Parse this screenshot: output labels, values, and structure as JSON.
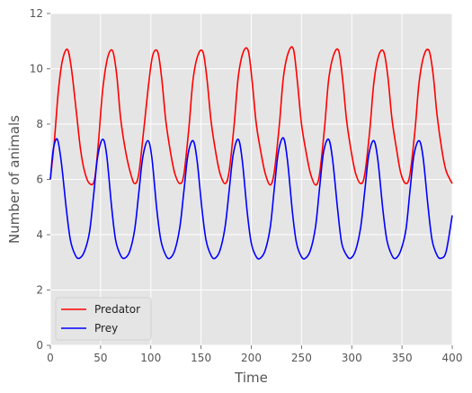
{
  "chart_data": {
    "type": "line",
    "title": "",
    "xlabel": "Time",
    "ylabel": "Number of animals",
    "xlim": [
      0,
      400
    ],
    "ylim": [
      0,
      12
    ],
    "xticks": [
      0,
      50,
      100,
      150,
      200,
      250,
      300,
      350,
      400
    ],
    "yticks": [
      0,
      2,
      4,
      6,
      8,
      10,
      12
    ],
    "grid": true,
    "legend_position": "lower-left",
    "style": "ggplot",
    "series": [
      {
        "name": "Predator",
        "color": "#ff0000",
        "x": [
          0,
          4,
          8,
          12,
          17,
          21,
          26,
          30,
          34,
          39,
          44,
          48,
          52,
          57,
          62,
          66,
          70,
          75,
          80,
          84,
          88,
          93,
          98,
          102,
          107,
          111,
          115,
          120,
          124,
          129,
          133,
          138,
          142,
          147,
          152,
          156,
          160,
          165,
          169,
          174,
          178,
          183,
          187,
          192,
          197,
          201,
          205,
          210,
          214,
          219,
          223,
          228,
          232,
          237,
          242,
          246,
          250,
          255,
          259,
          264,
          268,
          273,
          277,
          282,
          287,
          291,
          295,
          300,
          304,
          309,
          313,
          318,
          322,
          327,
          332,
          336,
          340,
          345,
          349,
          354,
          358,
          363,
          367,
          372,
          377,
          381,
          385,
          390,
          394,
          400
        ],
        "values": [
          6.0,
          7.4,
          9.2,
          10.3,
          10.7,
          10.0,
          8.4,
          7.1,
          6.3,
          5.85,
          6.0,
          7.4,
          9.2,
          10.4,
          10.65,
          9.8,
          8.2,
          7.0,
          6.2,
          5.85,
          6.2,
          7.8,
          9.5,
          10.5,
          10.6,
          9.6,
          8.1,
          6.9,
          6.2,
          5.85,
          6.2,
          7.9,
          9.6,
          10.5,
          10.6,
          9.6,
          8.1,
          6.9,
          6.2,
          5.85,
          6.3,
          8.0,
          9.7,
          10.6,
          10.65,
          9.5,
          8.0,
          6.9,
          6.2,
          5.8,
          6.3,
          8.0,
          9.7,
          10.6,
          10.7,
          9.5,
          8.0,
          6.9,
          6.2,
          5.8,
          6.2,
          7.9,
          9.6,
          10.5,
          10.65,
          9.6,
          8.1,
          6.9,
          6.2,
          5.85,
          6.2,
          7.8,
          9.5,
          10.5,
          10.6,
          9.7,
          8.2,
          7.0,
          6.2,
          5.85,
          6.2,
          7.8,
          9.5,
          10.5,
          10.65,
          9.8,
          8.3,
          7.0,
          6.3,
          5.85
        ]
      },
      {
        "name": "Prey",
        "color": "#0000ff",
        "x": [
          0,
          3,
          7,
          11,
          16,
          20,
          25,
          29,
          34,
          39,
          43,
          47,
          52,
          56,
          61,
          65,
          70,
          74,
          79,
          84,
          88,
          92,
          97,
          101,
          106,
          110,
          115,
          119,
          124,
          129,
          133,
          137,
          142,
          146,
          151,
          155,
          160,
          164,
          169,
          174,
          178,
          182,
          187,
          191,
          196,
          200,
          205,
          209,
          214,
          219,
          223,
          227,
          232,
          236,
          241,
          245,
          250,
          254,
          259,
          264,
          268,
          272,
          277,
          281,
          286,
          290,
          295,
          299,
          304,
          309,
          313,
          317,
          322,
          326,
          331,
          335,
          340,
          344,
          349,
          354,
          358,
          362,
          367,
          371,
          376,
          380,
          385,
          389,
          394,
          400
        ],
        "values": [
          6.0,
          7.1,
          7.45,
          6.6,
          4.9,
          3.8,
          3.25,
          3.15,
          3.4,
          4.1,
          5.4,
          6.8,
          7.45,
          6.9,
          5.0,
          3.8,
          3.25,
          3.15,
          3.4,
          4.2,
          5.5,
          6.8,
          7.4,
          6.8,
          4.9,
          3.8,
          3.25,
          3.15,
          3.45,
          4.3,
          5.6,
          6.9,
          7.4,
          6.7,
          4.9,
          3.8,
          3.25,
          3.15,
          3.45,
          4.3,
          5.6,
          6.9,
          7.45,
          6.7,
          4.8,
          3.7,
          3.2,
          3.15,
          3.45,
          4.3,
          5.7,
          7.0,
          7.5,
          6.7,
          4.8,
          3.7,
          3.2,
          3.15,
          3.45,
          4.3,
          5.7,
          7.0,
          7.45,
          6.7,
          4.9,
          3.7,
          3.25,
          3.15,
          3.45,
          4.3,
          5.6,
          6.9,
          7.4,
          6.7,
          4.9,
          3.8,
          3.25,
          3.15,
          3.45,
          4.2,
          5.6,
          6.9,
          7.4,
          6.8,
          5.0,
          3.8,
          3.25,
          3.15,
          3.4,
          4.7
        ]
      }
    ]
  }
}
